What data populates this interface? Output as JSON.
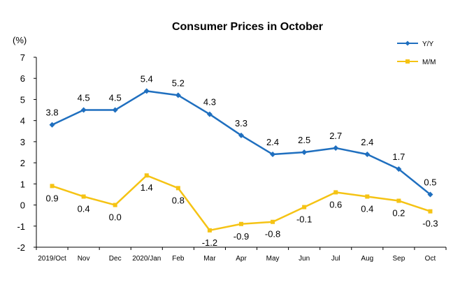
{
  "chart_data": {
    "type": "line",
    "title": "Consumer Prices in October",
    "ylabel": "(%)",
    "xlabel": "",
    "ylim": [
      -2,
      7
    ],
    "yticks": [
      7,
      6,
      5,
      4,
      3,
      2,
      1,
      0,
      -1,
      -2
    ],
    "grid": false,
    "legend": "top-right",
    "categories": [
      "2019/Oct",
      "Nov",
      "Dec",
      "2020/Jan",
      "Feb",
      "Mar",
      "Apr",
      "May",
      "Jun",
      "Jul",
      "Aug",
      "Sep",
      "Oct"
    ],
    "series": [
      {
        "name": "Y/Y",
        "color": "#1F6FBF",
        "marker": "diamond",
        "values": [
          3.8,
          4.5,
          4.5,
          5.4,
          5.2,
          4.3,
          3.3,
          2.4,
          2.5,
          2.7,
          2.4,
          1.7,
          0.5
        ],
        "labels": [
          "3.8",
          "4.5",
          "4.5",
          "5.4",
          "5.2",
          "4.3",
          "3.3",
          "2.4",
          "2.5",
          "2.7",
          "2.4",
          "1.7",
          "0.5"
        ]
      },
      {
        "name": "M/M",
        "color": "#F5C314",
        "marker": "square",
        "values": [
          0.9,
          0.4,
          0.0,
          1.4,
          0.8,
          -1.2,
          -0.9,
          -0.8,
          -0.1,
          0.6,
          0.4,
          0.2,
          -0.3
        ],
        "labels": [
          "0.9",
          "0.4",
          "0.0",
          "1.4",
          "0.8",
          "-1.2",
          "-0.9",
          "-0.8",
          "-0.1",
          "0.6",
          "0.4",
          "0.2",
          "-0.3"
        ]
      }
    ]
  }
}
